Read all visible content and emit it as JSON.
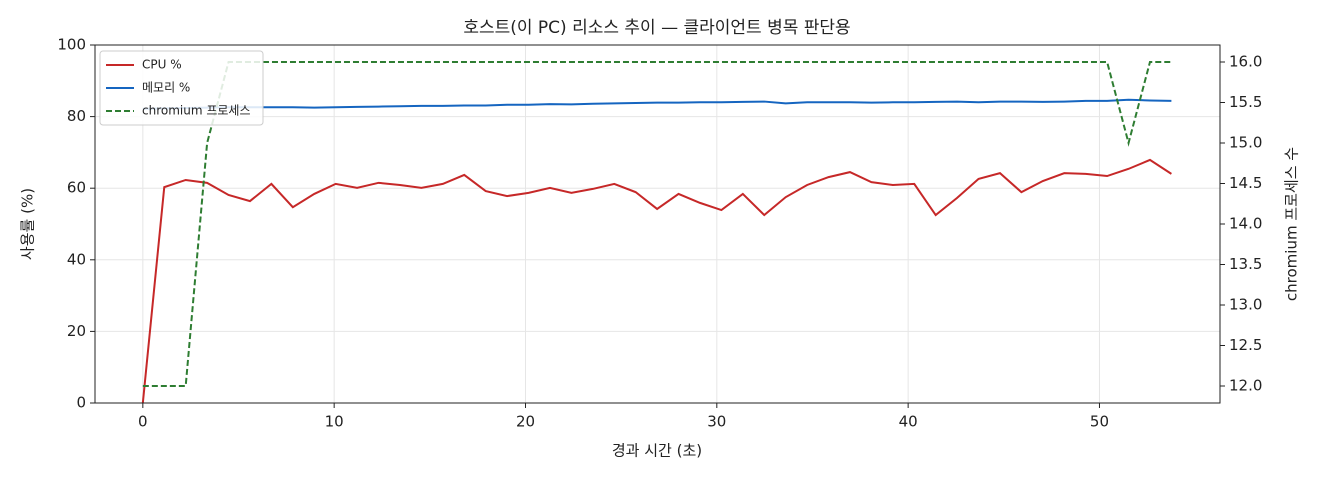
{
  "chart_data": {
    "type": "line",
    "title": "호스트(이 PC) 리소스 추이 — 클라이언트 병목 판단용",
    "x_label": "경과 시간 (초)",
    "y_label": "사용률 (%)",
    "y2_label": "chromium 프로세스 수",
    "x": [
      0,
      1.12,
      2.24,
      3.36,
      4.48,
      5.6,
      6.72,
      7.84,
      8.96,
      10.08,
      11.2,
      12.32,
      13.44,
      14.56,
      15.68,
      16.8,
      17.92,
      19.04,
      20.16,
      21.28,
      22.4,
      23.52,
      24.64,
      25.76,
      26.88,
      28,
      29.12,
      30.24,
      31.36,
      32.48,
      33.6,
      34.72,
      35.84,
      36.96,
      38.08,
      39.2,
      40.32,
      41.44,
      42.56,
      43.68,
      44.8,
      45.92,
      47.04,
      48.16,
      49.28,
      50.4,
      51.52,
      52.64,
      53.76
    ],
    "series": [
      {
        "name": "CPU %",
        "color": "#c62828",
        "dash": false,
        "values": [
          0,
          60.3,
          62.3,
          61.5,
          58.1,
          56.4,
          61.2,
          54.7,
          58.4,
          61.2,
          60.1,
          61.5,
          60.9,
          60.1,
          61.2,
          63.7,
          59.2,
          57.8,
          58.7,
          60.1,
          58.7,
          59.8,
          61.2,
          58.9,
          54.2,
          58.4,
          55.9,
          53.9,
          58.4,
          52.5,
          57.5,
          60.9,
          63.1,
          64.5,
          61.7,
          60.9,
          61.2,
          52.5,
          57.3,
          62.6,
          64.2,
          58.9,
          62.0,
          64.2,
          64.0,
          63.4,
          65.4,
          67.9,
          64.0
        ]
      },
      {
        "name": "메모리 %",
        "color": "#1565c0",
        "dash": false,
        "values": [
          82.2,
          82.3,
          82.4,
          82.5,
          82.6,
          82.6,
          82.6,
          82.6,
          82.5,
          82.6,
          82.7,
          82.8,
          82.9,
          83.0,
          83.0,
          83.1,
          83.1,
          83.3,
          83.3,
          83.5,
          83.4,
          83.6,
          83.7,
          83.8,
          83.9,
          83.9,
          84.0,
          84.0,
          84.1,
          84.2,
          83.7,
          84.0,
          84.0,
          84.0,
          83.9,
          84.0,
          84.0,
          84.1,
          84.2,
          84.0,
          84.2,
          84.2,
          84.1,
          84.2,
          84.4,
          84.4,
          84.7,
          84.5,
          84.4
        ]
      },
      {
        "name": "chromium 프로세스",
        "color": "#2e7d32",
        "dash": true,
        "axis": "y2",
        "values": [
          12,
          12,
          12,
          15,
          16,
          16,
          16,
          16,
          16,
          16,
          16,
          16,
          16,
          16,
          16,
          16,
          16,
          16,
          16,
          16,
          16,
          16,
          16,
          16,
          16,
          16,
          16,
          16,
          16,
          16,
          16,
          16,
          16,
          16,
          16,
          16,
          16,
          16,
          16,
          16,
          16,
          16,
          16,
          16,
          16,
          16,
          15,
          16,
          16
        ]
      }
    ],
    "xlim": [
      -2.5,
      56.3
    ],
    "xticks": [
      0,
      10,
      20,
      30,
      40,
      50
    ],
    "ylim": [
      0,
      100
    ],
    "yticks": [
      0,
      20,
      40,
      60,
      80,
      100
    ],
    "y2lim": [
      11.79,
      16.21
    ],
    "y2ticks": [
      {
        "value": 12,
        "label": "12.0"
      },
      12.5,
      {
        "value": 13,
        "label": "13.0"
      },
      13.5,
      {
        "value": 14,
        "label": "14.0"
      },
      14.5,
      {
        "value": 15,
        "label": "15.0"
      },
      15.5,
      {
        "value": 16,
        "label": "16.0"
      }
    ],
    "grid": true,
    "legend": "upper-left"
  }
}
